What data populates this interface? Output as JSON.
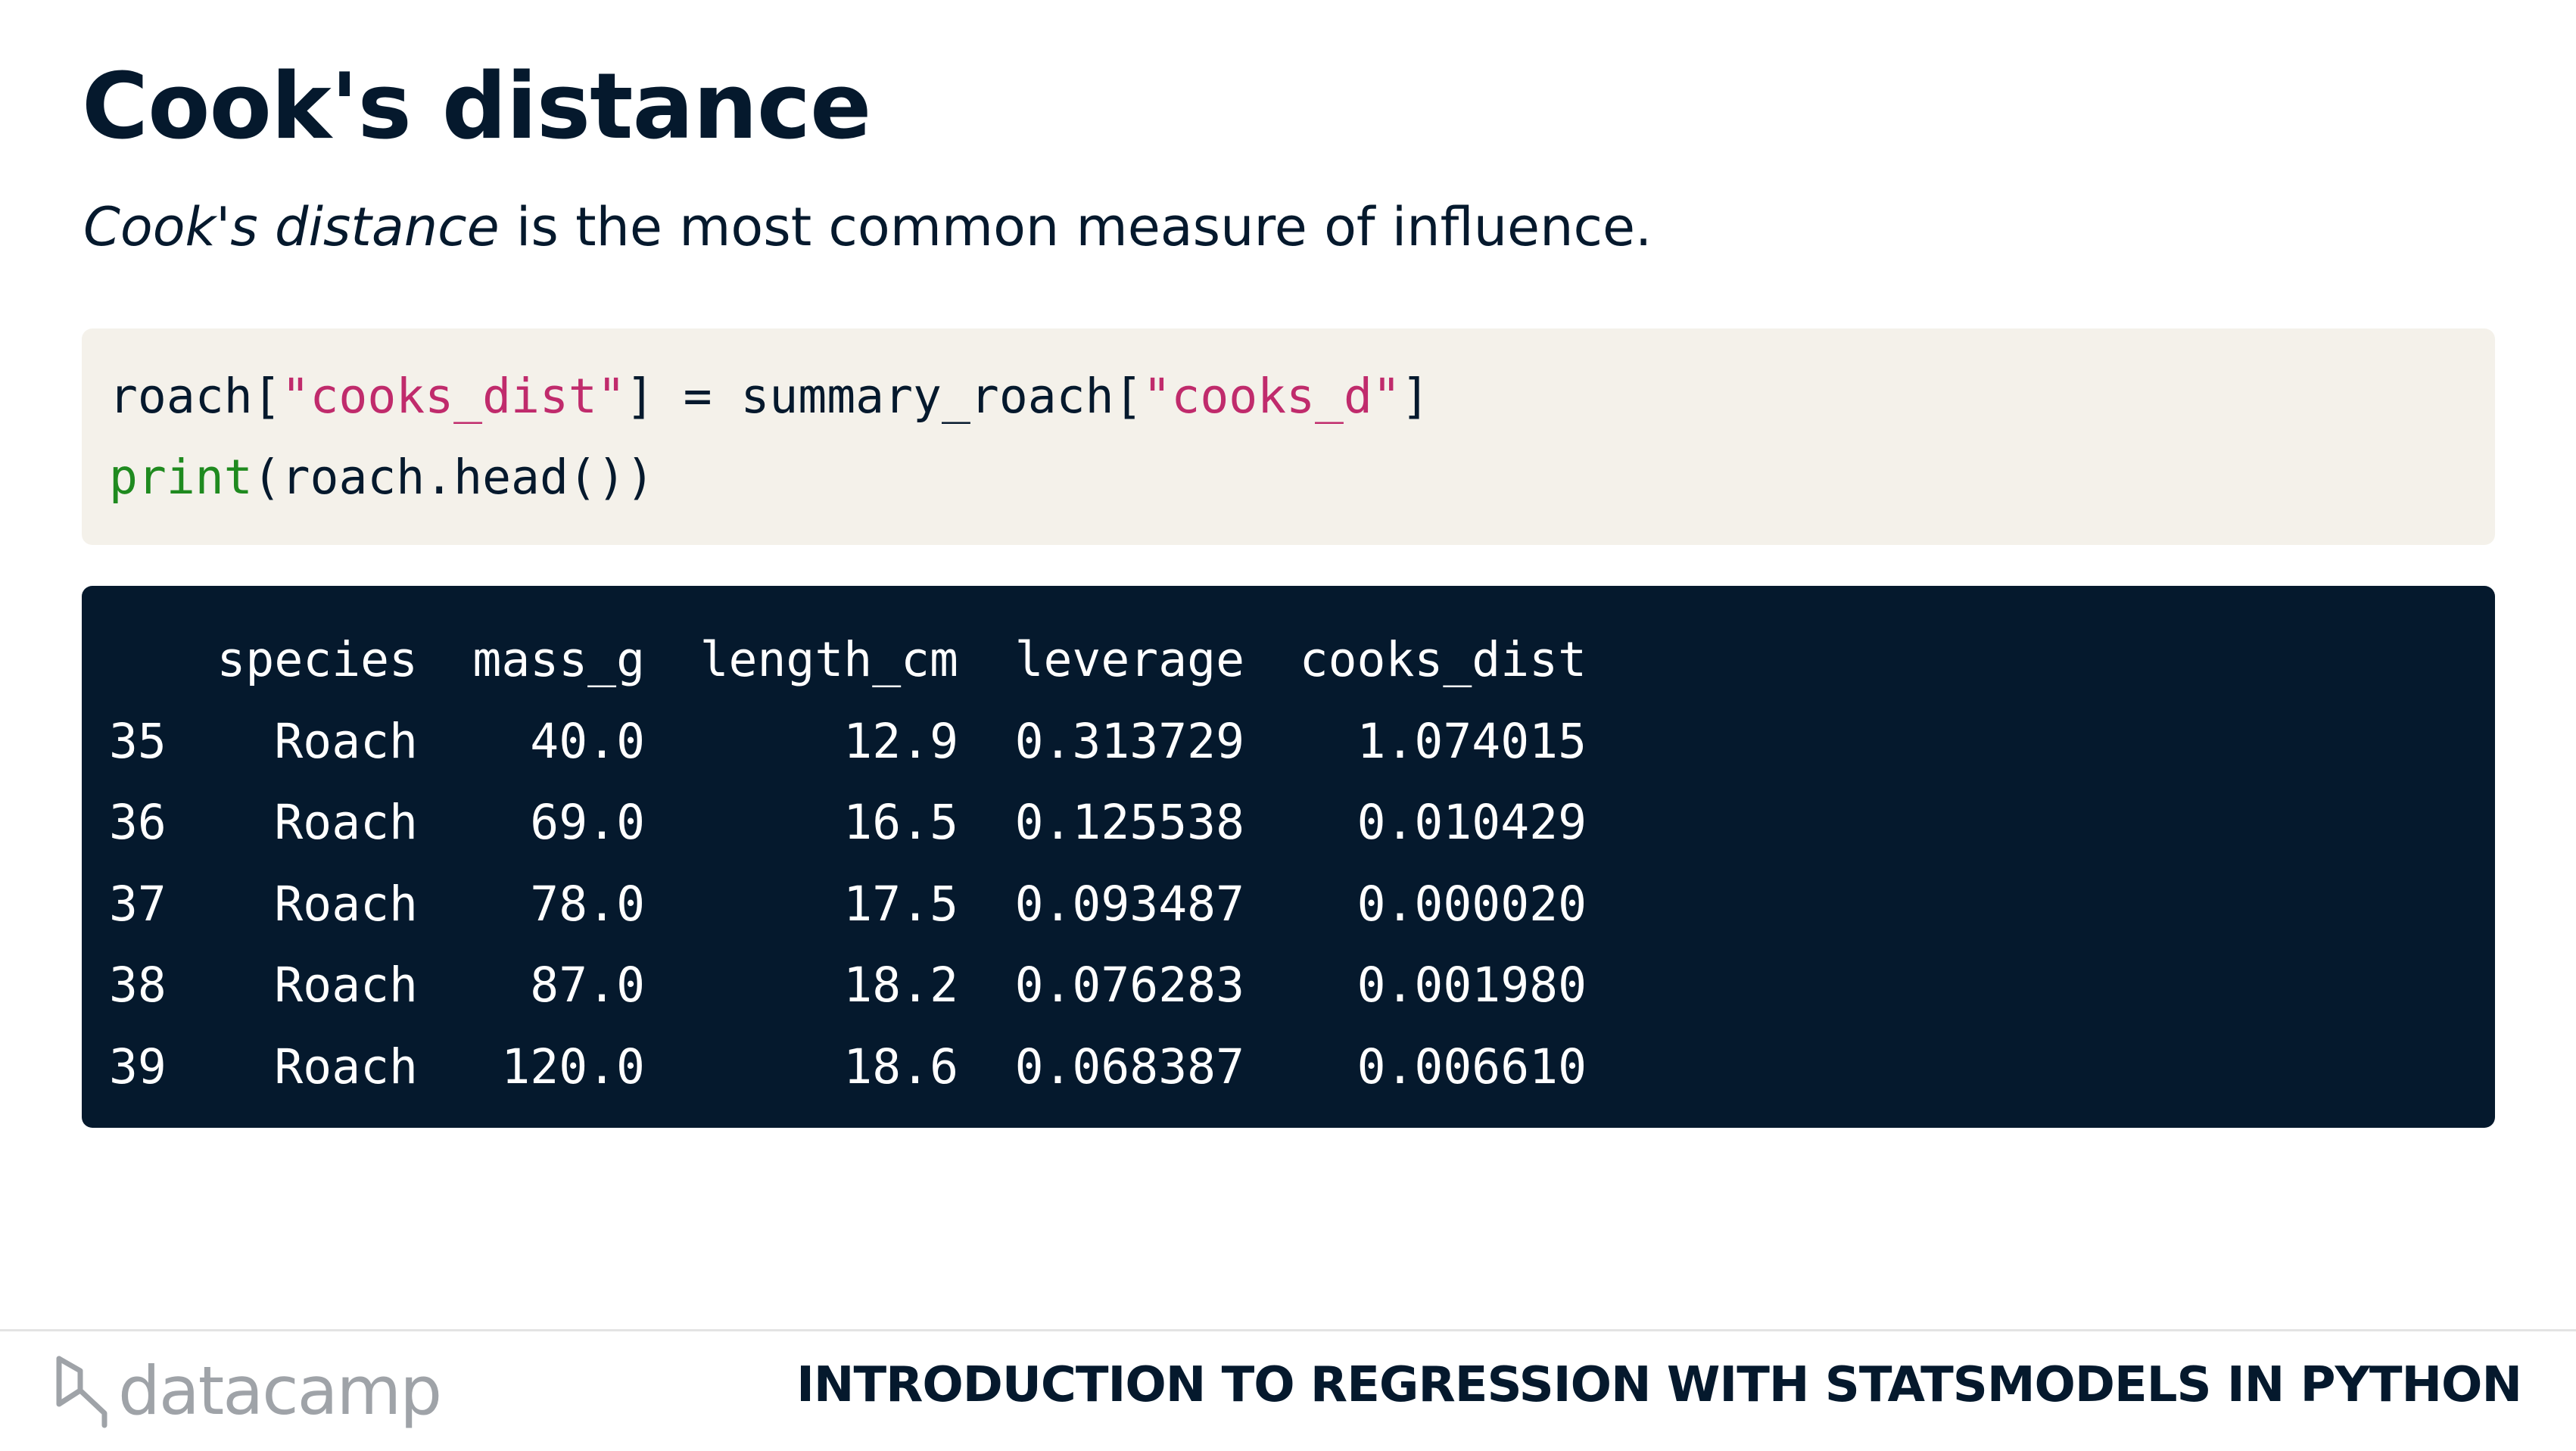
{
  "title": "Cook's distance",
  "subtitle": {
    "emphasis": "Cook's distance",
    "rest": " is the most common measure of influence."
  },
  "code": {
    "line1": {
      "p1": "roach[",
      "s1": "\"cooks_dist\"",
      "p2": "] = summary_roach[",
      "s2": "\"cooks_d\"",
      "p3": "]"
    },
    "line2": {
      "kw": "print",
      "rest": "(roach.head())"
    }
  },
  "output": {
    "columns": [
      "",
      "species",
      "mass_g",
      "length_cm",
      "leverage",
      "cooks_dist"
    ],
    "rows": [
      [
        "35",
        "Roach",
        "40.0",
        "12.9",
        "0.313729",
        "1.074015"
      ],
      [
        "36",
        "Roach",
        "69.0",
        "16.5",
        "0.125538",
        "0.010429"
      ],
      [
        "37",
        "Roach",
        "78.0",
        "17.5",
        "0.093487",
        "0.000020"
      ],
      [
        "38",
        "Roach",
        "87.0",
        "18.2",
        "0.076283",
        "0.001980"
      ],
      [
        "39",
        "Roach",
        "120.0",
        "18.6",
        "0.068387",
        "0.006610"
      ]
    ]
  },
  "footer": {
    "logo_text": "datacamp",
    "course": "INTRODUCTION TO REGRESSION WITH STATSMODELS IN PYTHON"
  },
  "colors": {
    "navy": "#05192d",
    "code_bg": "#f4f1ea",
    "string": "#c02b6c",
    "keyword": "#1f8a1f"
  },
  "icons": {
    "logo": "datacamp-logo-icon"
  }
}
